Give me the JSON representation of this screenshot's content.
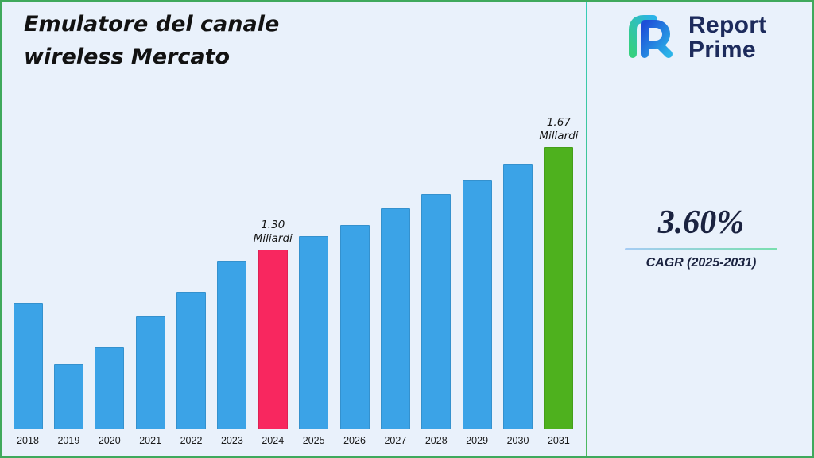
{
  "header": {
    "title_line1": "Emulatore del canale",
    "title_line2": "wireless Mercato"
  },
  "logo": {
    "line1": "Report",
    "line2": "Prime"
  },
  "stats": {
    "cagr_value": "3.60%",
    "cagr_label": "CAGR (2025-2031)"
  },
  "chart_data": {
    "type": "bar",
    "title": "Emulatore del canale wireless Mercato",
    "unit": "Miliardi",
    "categories": [
      "2018",
      "2019",
      "2020",
      "2021",
      "2022",
      "2023",
      "2024",
      "2025",
      "2026",
      "2027",
      "2028",
      "2029",
      "2030",
      "2031"
    ],
    "values": [
      1.11,
      0.89,
      0.95,
      1.06,
      1.15,
      1.26,
      1.3,
      1.35,
      1.39,
      1.45,
      1.5,
      1.55,
      1.61,
      1.67
    ],
    "ylim": [
      0.655,
      1.75
    ],
    "bar_color": "#3ba3e7",
    "highlight_colors": {
      "2024": "#f8275f",
      "2031": "#4eb11e"
    },
    "annotations": [
      {
        "category": "2024",
        "value_label": "1.30",
        "unit_label": "Miliardi"
      },
      {
        "category": "2031",
        "value_label": "1.67",
        "unit_label": "Miliardi"
      }
    ],
    "legend": null,
    "grid": false
  }
}
